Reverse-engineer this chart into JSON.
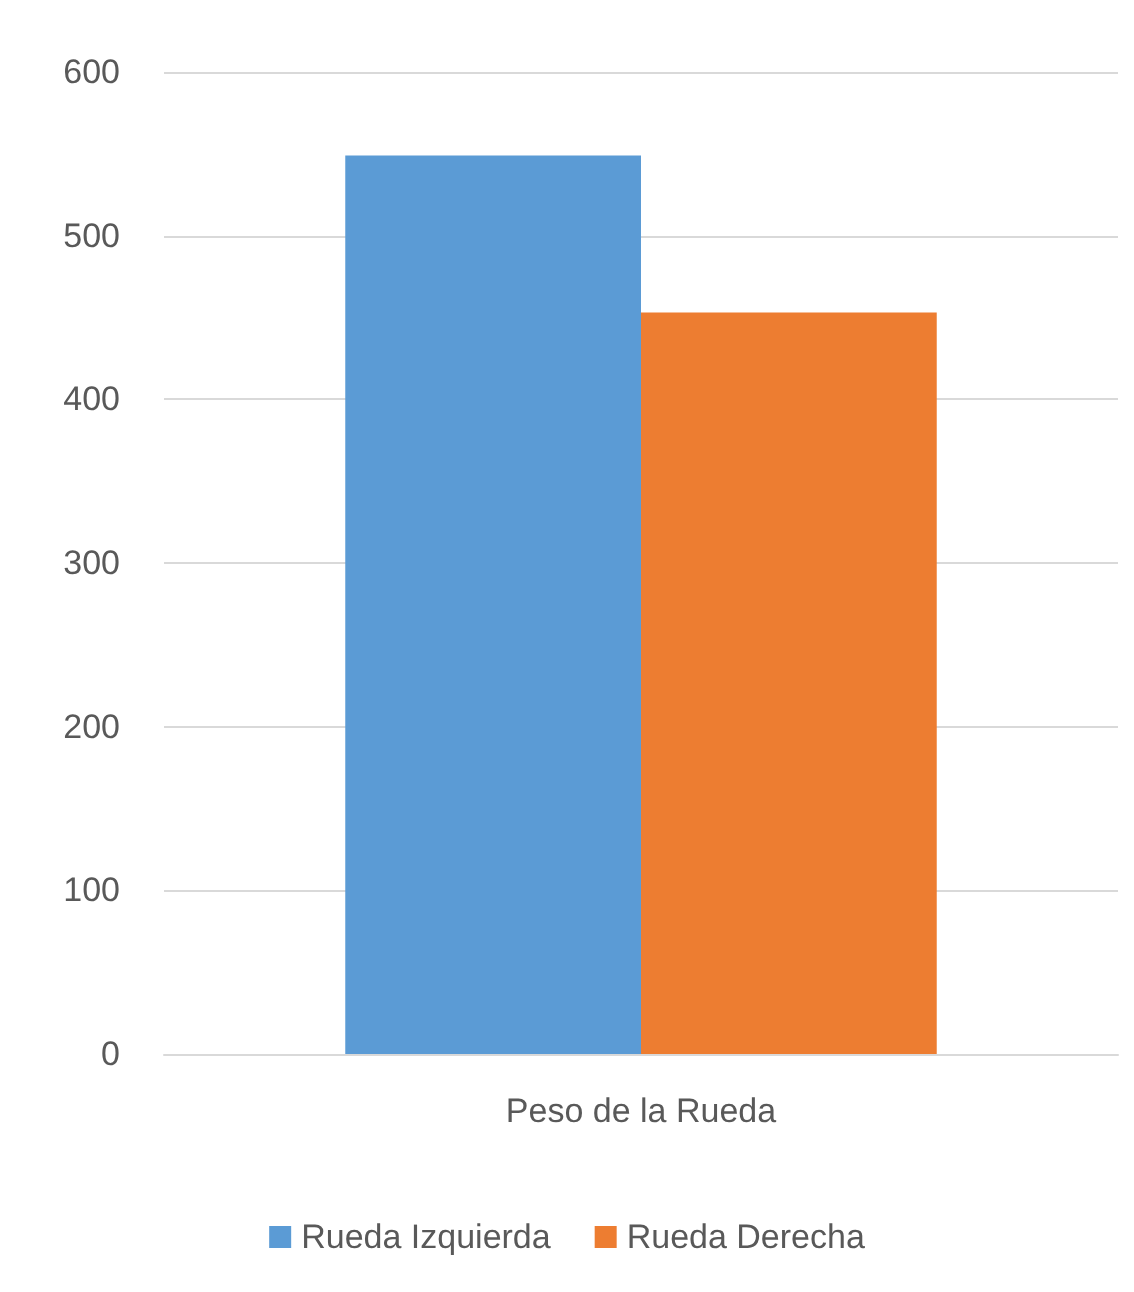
{
  "chart_data": {
    "type": "bar",
    "categories": [
      "Peso de la Rueda"
    ],
    "series": [
      {
        "name": "Rueda Izquierda",
        "color": "#5b9bd5",
        "values": [
          549
        ]
      },
      {
        "name": "Rueda Derecha",
        "color": "#ed7d31",
        "values": [
          453
        ]
      }
    ],
    "ylim": [
      0,
      600
    ],
    "yticks": [
      0,
      100,
      200,
      300,
      400,
      500,
      600
    ],
    "grid": "y",
    "legend": "bottom"
  }
}
